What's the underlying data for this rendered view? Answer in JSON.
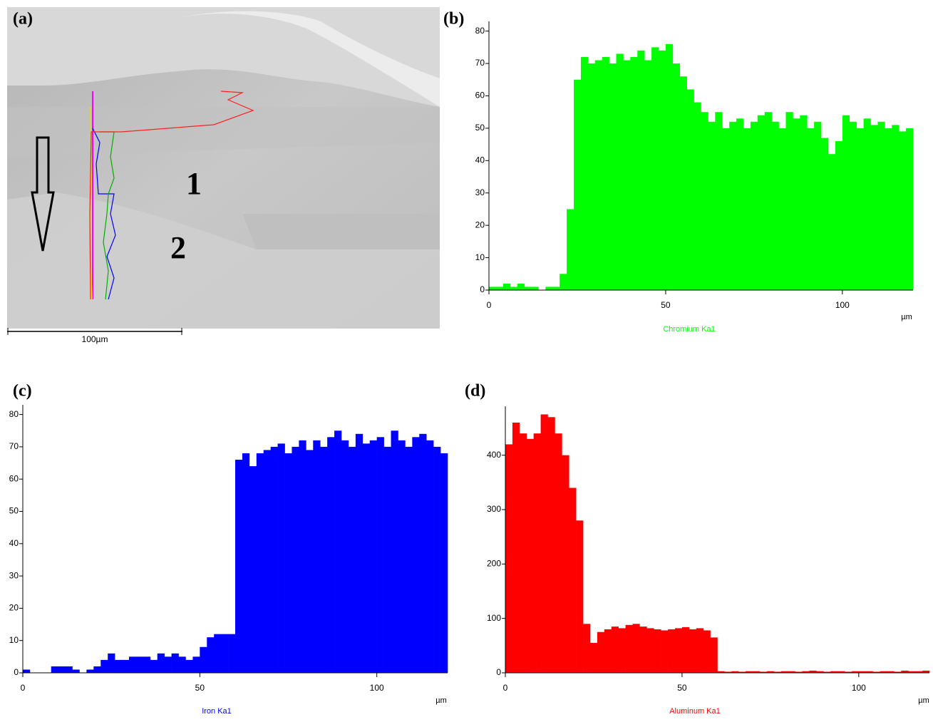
{
  "image": {
    "panel": "(a)",
    "labels": [
      "1",
      "2"
    ],
    "scale_bar": "100µm"
  },
  "chart_data": [
    {
      "type": "histogram",
      "panel": "(b)",
      "title": "Chromium Ka1",
      "x_label": "µm",
      "color": "#00ff00",
      "bins": [
        0,
        2,
        4,
        6,
        8,
        10,
        12,
        14,
        16,
        18,
        20,
        22,
        24,
        26,
        28,
        30,
        32,
        34,
        36,
        38,
        40,
        42,
        44,
        46,
        48,
        50,
        52,
        54,
        56,
        58,
        60,
        62,
        64,
        66,
        68,
        70,
        72,
        74,
        76,
        78,
        80,
        82,
        84,
        86,
        88,
        90,
        92,
        94,
        96,
        98,
        100,
        102,
        104,
        106,
        108,
        110,
        112,
        114,
        116,
        118,
        120
      ],
      "values": [
        1,
        1,
        2,
        1,
        2,
        1,
        1,
        0,
        1,
        1,
        5,
        25,
        65,
        72,
        70,
        71,
        72,
        70,
        73,
        71,
        72,
        74,
        71,
        75,
        74,
        76,
        70,
        66,
        62,
        58,
        55,
        52,
        55,
        50,
        52,
        53,
        50,
        52,
        54,
        55,
        52,
        50,
        55,
        53,
        54,
        50,
        52,
        47,
        42,
        46,
        54,
        52,
        50,
        53,
        51,
        52,
        50,
        51,
        49,
        50
      ],
      "xlim": [
        0,
        120
      ],
      "xticks": [
        0,
        50,
        100
      ],
      "ylim": [
        0,
        83
      ],
      "yticks": [
        0,
        10,
        20,
        30,
        40,
        50,
        60,
        70,
        80
      ]
    },
    {
      "type": "histogram",
      "panel": "(c)",
      "title": "Iron Ka1",
      "x_label": "µm",
      "color": "#0000ff",
      "bins": [
        0,
        2,
        4,
        6,
        8,
        10,
        12,
        14,
        16,
        18,
        20,
        22,
        24,
        26,
        28,
        30,
        32,
        34,
        36,
        38,
        40,
        42,
        44,
        46,
        48,
        50,
        52,
        54,
        56,
        58,
        60,
        62,
        64,
        66,
        68,
        70,
        72,
        74,
        76,
        78,
        80,
        82,
        84,
        86,
        88,
        90,
        92,
        94,
        96,
        98,
        100,
        102,
        104,
        106,
        108,
        110,
        112,
        114,
        116,
        118,
        120
      ],
      "values": [
        1,
        0,
        0,
        0,
        2,
        2,
        2,
        1,
        0,
        1,
        2,
        4,
        6,
        4,
        4,
        5,
        5,
        5,
        4,
        6,
        5,
        6,
        5,
        4,
        5,
        8,
        11,
        12,
        12,
        12,
        66,
        68,
        64,
        68,
        69,
        70,
        71,
        68,
        70,
        72,
        69,
        72,
        70,
        73,
        75,
        72,
        70,
        74,
        71,
        72,
        73,
        70,
        75,
        72,
        70,
        73,
        74,
        72,
        70,
        68
      ],
      "xlim": [
        0,
        120
      ],
      "xticks": [
        0,
        50,
        100
      ],
      "ylim": [
        0,
        83
      ],
      "yticks": [
        0,
        10,
        20,
        30,
        40,
        50,
        60,
        70,
        80
      ]
    },
    {
      "type": "histogram",
      "panel": "(d)",
      "title": "Aluminum Ka1",
      "x_label": "µm",
      "color": "#ff0000",
      "bins": [
        0,
        2,
        4,
        6,
        8,
        10,
        12,
        14,
        16,
        18,
        20,
        22,
        24,
        26,
        28,
        30,
        32,
        34,
        36,
        38,
        40,
        42,
        44,
        46,
        48,
        50,
        52,
        54,
        56,
        58,
        60,
        62,
        64,
        66,
        68,
        70,
        72,
        74,
        76,
        78,
        80,
        82,
        84,
        86,
        88,
        90,
        92,
        94,
        96,
        98,
        100,
        102,
        104,
        106,
        108,
        110,
        112,
        114,
        116,
        118,
        120
      ],
      "values": [
        420,
        460,
        440,
        430,
        440,
        475,
        470,
        440,
        400,
        340,
        280,
        90,
        55,
        75,
        80,
        85,
        82,
        88,
        90,
        85,
        82,
        80,
        78,
        80,
        82,
        84,
        80,
        82,
        78,
        65,
        3,
        2,
        3,
        2,
        3,
        3,
        2,
        3,
        2,
        3,
        3,
        2,
        3,
        4,
        3,
        2,
        3,
        3,
        2,
        3,
        3,
        3,
        2,
        3,
        3,
        2,
        4,
        3,
        3,
        4
      ],
      "xlim": [
        0,
        120
      ],
      "xticks": [
        0,
        50,
        100
      ],
      "ylim": [
        0,
        490
      ],
      "yticks": [
        0,
        100,
        200,
        300,
        400
      ]
    }
  ]
}
